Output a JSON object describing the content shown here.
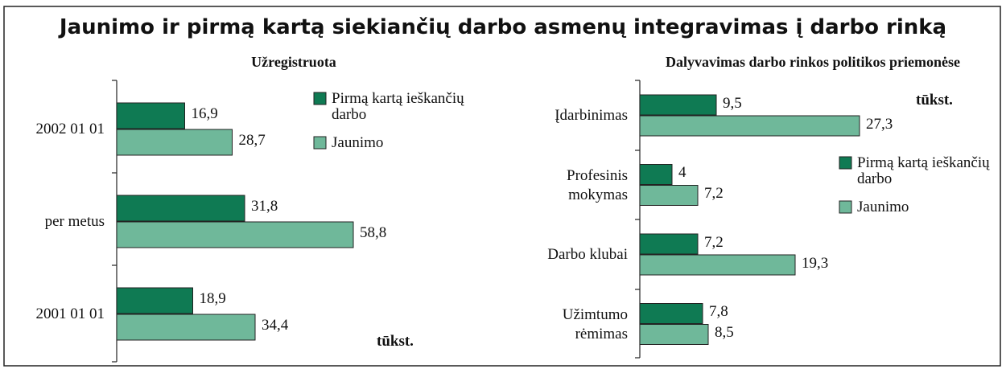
{
  "title": "Jaunimo ir pirmą kartą siekiančių darbo asmenų integravimas į darbo rinką",
  "chart_data": [
    {
      "type": "bar",
      "orientation": "horizontal",
      "title": "Užregistruota",
      "unit_label": "tūkst.",
      "categories": [
        "2002 01 01",
        "per metus",
        "2001 01 01"
      ],
      "series": [
        {
          "name": "Pirmą kartą ieškančių darbo",
          "color": "#0f7a53",
          "values": [
            16.9,
            31.8,
            18.9
          ],
          "value_labels": [
            "16,9",
            "31,8",
            "18,9"
          ]
        },
        {
          "name": "Jaunimo",
          "color": "#6fb89a",
          "values": [
            28.7,
            58.8,
            34.4
          ],
          "value_labels": [
            "28,7",
            "58,8",
            "34,4"
          ]
        }
      ]
    },
    {
      "type": "bar",
      "orientation": "horizontal",
      "title": "Dalyvavimas darbo rinkos politikos priemonėse",
      "unit_label": "tūkst.",
      "categories": [
        "Įdarbinimas",
        "Profesinis mokymas",
        "Darbo klubai",
        "Užimtumo rėmimas"
      ],
      "series": [
        {
          "name": "Pirmą kartą ieškančių darbo",
          "color": "#0f7a53",
          "values": [
            9.5,
            4,
            7.2,
            7.8
          ],
          "value_labels": [
            "9,5",
            "4",
            "7,2",
            "7,8"
          ]
        },
        {
          "name": "Jaunimo",
          "color": "#6fb89a",
          "values": [
            27.3,
            7.2,
            19.3,
            8.5
          ],
          "value_labels": [
            "27,3",
            "7,2",
            "19,3",
            "8,5"
          ]
        }
      ]
    }
  ]
}
